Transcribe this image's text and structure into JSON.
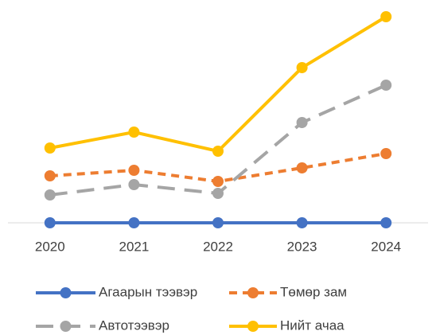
{
  "chart_data": {
    "type": "line",
    "categories": [
      "2020",
      "2021",
      "2022",
      "2023",
      "2024"
    ],
    "series": [
      {
        "name": "Агаарын тээвэр",
        "color": "#4472c4",
        "dash": "solid",
        "values": [
          0,
          0,
          0,
          0,
          0
        ]
      },
      {
        "name": "Төмөр зам",
        "color": "#ed7d31",
        "dash": "dashed",
        "values": [
          59,
          66,
          52,
          69,
          87
        ]
      },
      {
        "name": "Автотээвэр",
        "color": "#a5a5a5",
        "dash": "longdash",
        "values": [
          35,
          48,
          37,
          126,
          173
        ]
      },
      {
        "name": "Нийт ачаа",
        "color": "#ffc000",
        "dash": "solid",
        "values": [
          94,
          114,
          90,
          195,
          259
        ]
      }
    ],
    "ylim": [
      0,
      270
    ],
    "grid": false,
    "legend": "bottom"
  }
}
